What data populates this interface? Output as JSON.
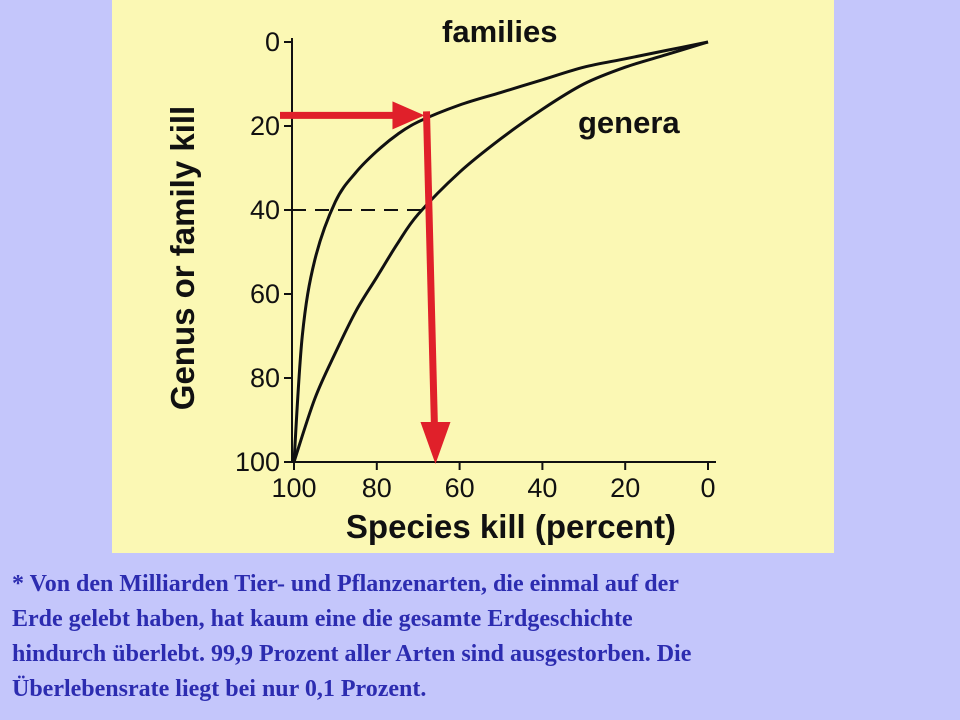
{
  "chart_data": {
    "type": "line",
    "xlabel": "Species kill (percent)",
    "ylabel": "Genus or family kill",
    "xlim": [
      100,
      0
    ],
    "ylim": [
      0,
      100
    ],
    "x_ticks": [
      100,
      80,
      60,
      40,
      20,
      0
    ],
    "y_ticks": [
      0,
      20,
      40,
      60,
      80,
      100
    ],
    "grid": false,
    "series": [
      {
        "name": "families",
        "x": [
          100,
          98,
          95,
          90,
          85,
          80,
          75,
          70,
          60,
          50,
          40,
          30,
          20,
          10,
          0
        ],
        "y": [
          100,
          70,
          52,
          38,
          31,
          26,
          22,
          19,
          15,
          12,
          9,
          6,
          4,
          2,
          0
        ]
      },
      {
        "name": "genera",
        "x": [
          100,
          95,
          90,
          85,
          80,
          75,
          70,
          60,
          50,
          40,
          30,
          20,
          10,
          0
        ],
        "y": [
          100,
          85,
          74,
          64,
          56,
          48,
          41,
          31,
          23,
          16,
          10,
          6,
          3,
          0
        ]
      }
    ],
    "annotations": {
      "red_arrow": {
        "from_y": 17,
        "turn_x": 68,
        "to_y": 100
      },
      "dashed_line": {
        "y": 40,
        "to_x": 68
      }
    }
  },
  "caption": {
    "lines": [
      "* Von den Milliarden Tier- und Pflanzenarten, die einmal auf der",
      "Erde gelebt haben, hat kaum eine die gesamte Erdgeschichte",
      "hindurch überlebt. 99,9 Prozent aller Arten sind ausgestorben. Die",
      "Überlebensrate liegt bei nur 0,1 Prozent."
    ]
  },
  "colors": {
    "chart_background": "#fbf8b4",
    "page_background": "#c4c6fb",
    "curve": "#111111",
    "arrow": "#e0202a",
    "caption_text": "#2c2cb0"
  }
}
